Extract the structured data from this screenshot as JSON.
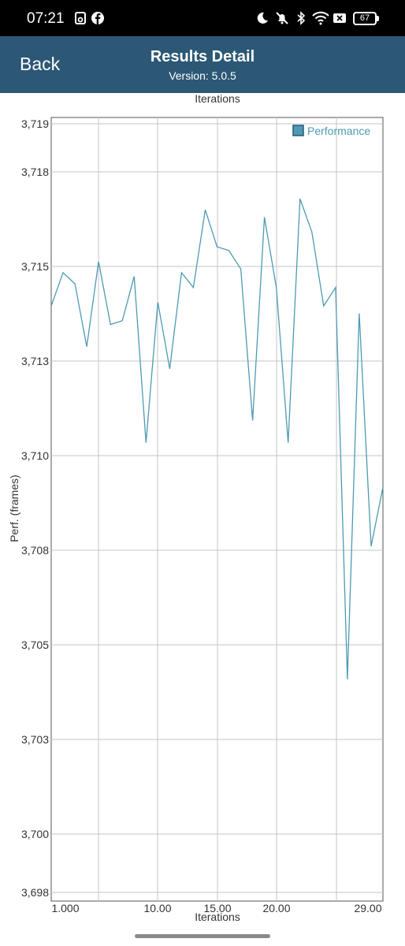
{
  "status_bar": {
    "time": "07:21",
    "battery": "67",
    "icons": [
      "photo-icon",
      "facebook-icon",
      "moon-icon",
      "bell-off-icon",
      "bluetooth-icon",
      "wifi-icon",
      "sim-off-icon",
      "battery-icon"
    ]
  },
  "header": {
    "back_label": "Back",
    "title": "Results Detail",
    "subtitle": "Version: 5.0.5",
    "background": "#2c5875"
  },
  "chart_data": {
    "type": "line",
    "xlabel": "Iterations",
    "ylabel": "Perf. (frames)",
    "legend": "Performance",
    "legend_position": "top-right",
    "grid": true,
    "line_color": "#4d9ab3",
    "x_tick_labels": [
      "1.000",
      "10.00",
      "15.00",
      "20.00",
      "29.00"
    ],
    "y_tick_labels": [
      "3,698",
      "3,700",
      "3,703",
      "3,705",
      "3,708",
      "3,710",
      "3,713",
      "3,715",
      "3,718",
      "3,719"
    ],
    "x_range": [
      1,
      29
    ],
    "y_range": [
      3697.9,
      3719.1
    ],
    "x": [
      1,
      2,
      3,
      4,
      5,
      6,
      7,
      8,
      9,
      10,
      11,
      12,
      13,
      14,
      15,
      16,
      17,
      18,
      19,
      20,
      21,
      22,
      23,
      24,
      25,
      26,
      27,
      28,
      29
    ],
    "series": [
      {
        "name": "Performance",
        "values": [
          3714.0,
          3714.9,
          3714.6,
          3712.9,
          3715.2,
          3713.5,
          3713.6,
          3714.8,
          3710.3,
          3714.1,
          3712.3,
          3714.9,
          3714.5,
          3716.6,
          3715.6,
          3715.5,
          3715.0,
          3710.9,
          3716.4,
          3714.5,
          3710.3,
          3716.9,
          3716.0,
          3714.0,
          3714.5,
          3703.9,
          3713.8,
          3707.5,
          3709.1
        ]
      }
    ]
  }
}
